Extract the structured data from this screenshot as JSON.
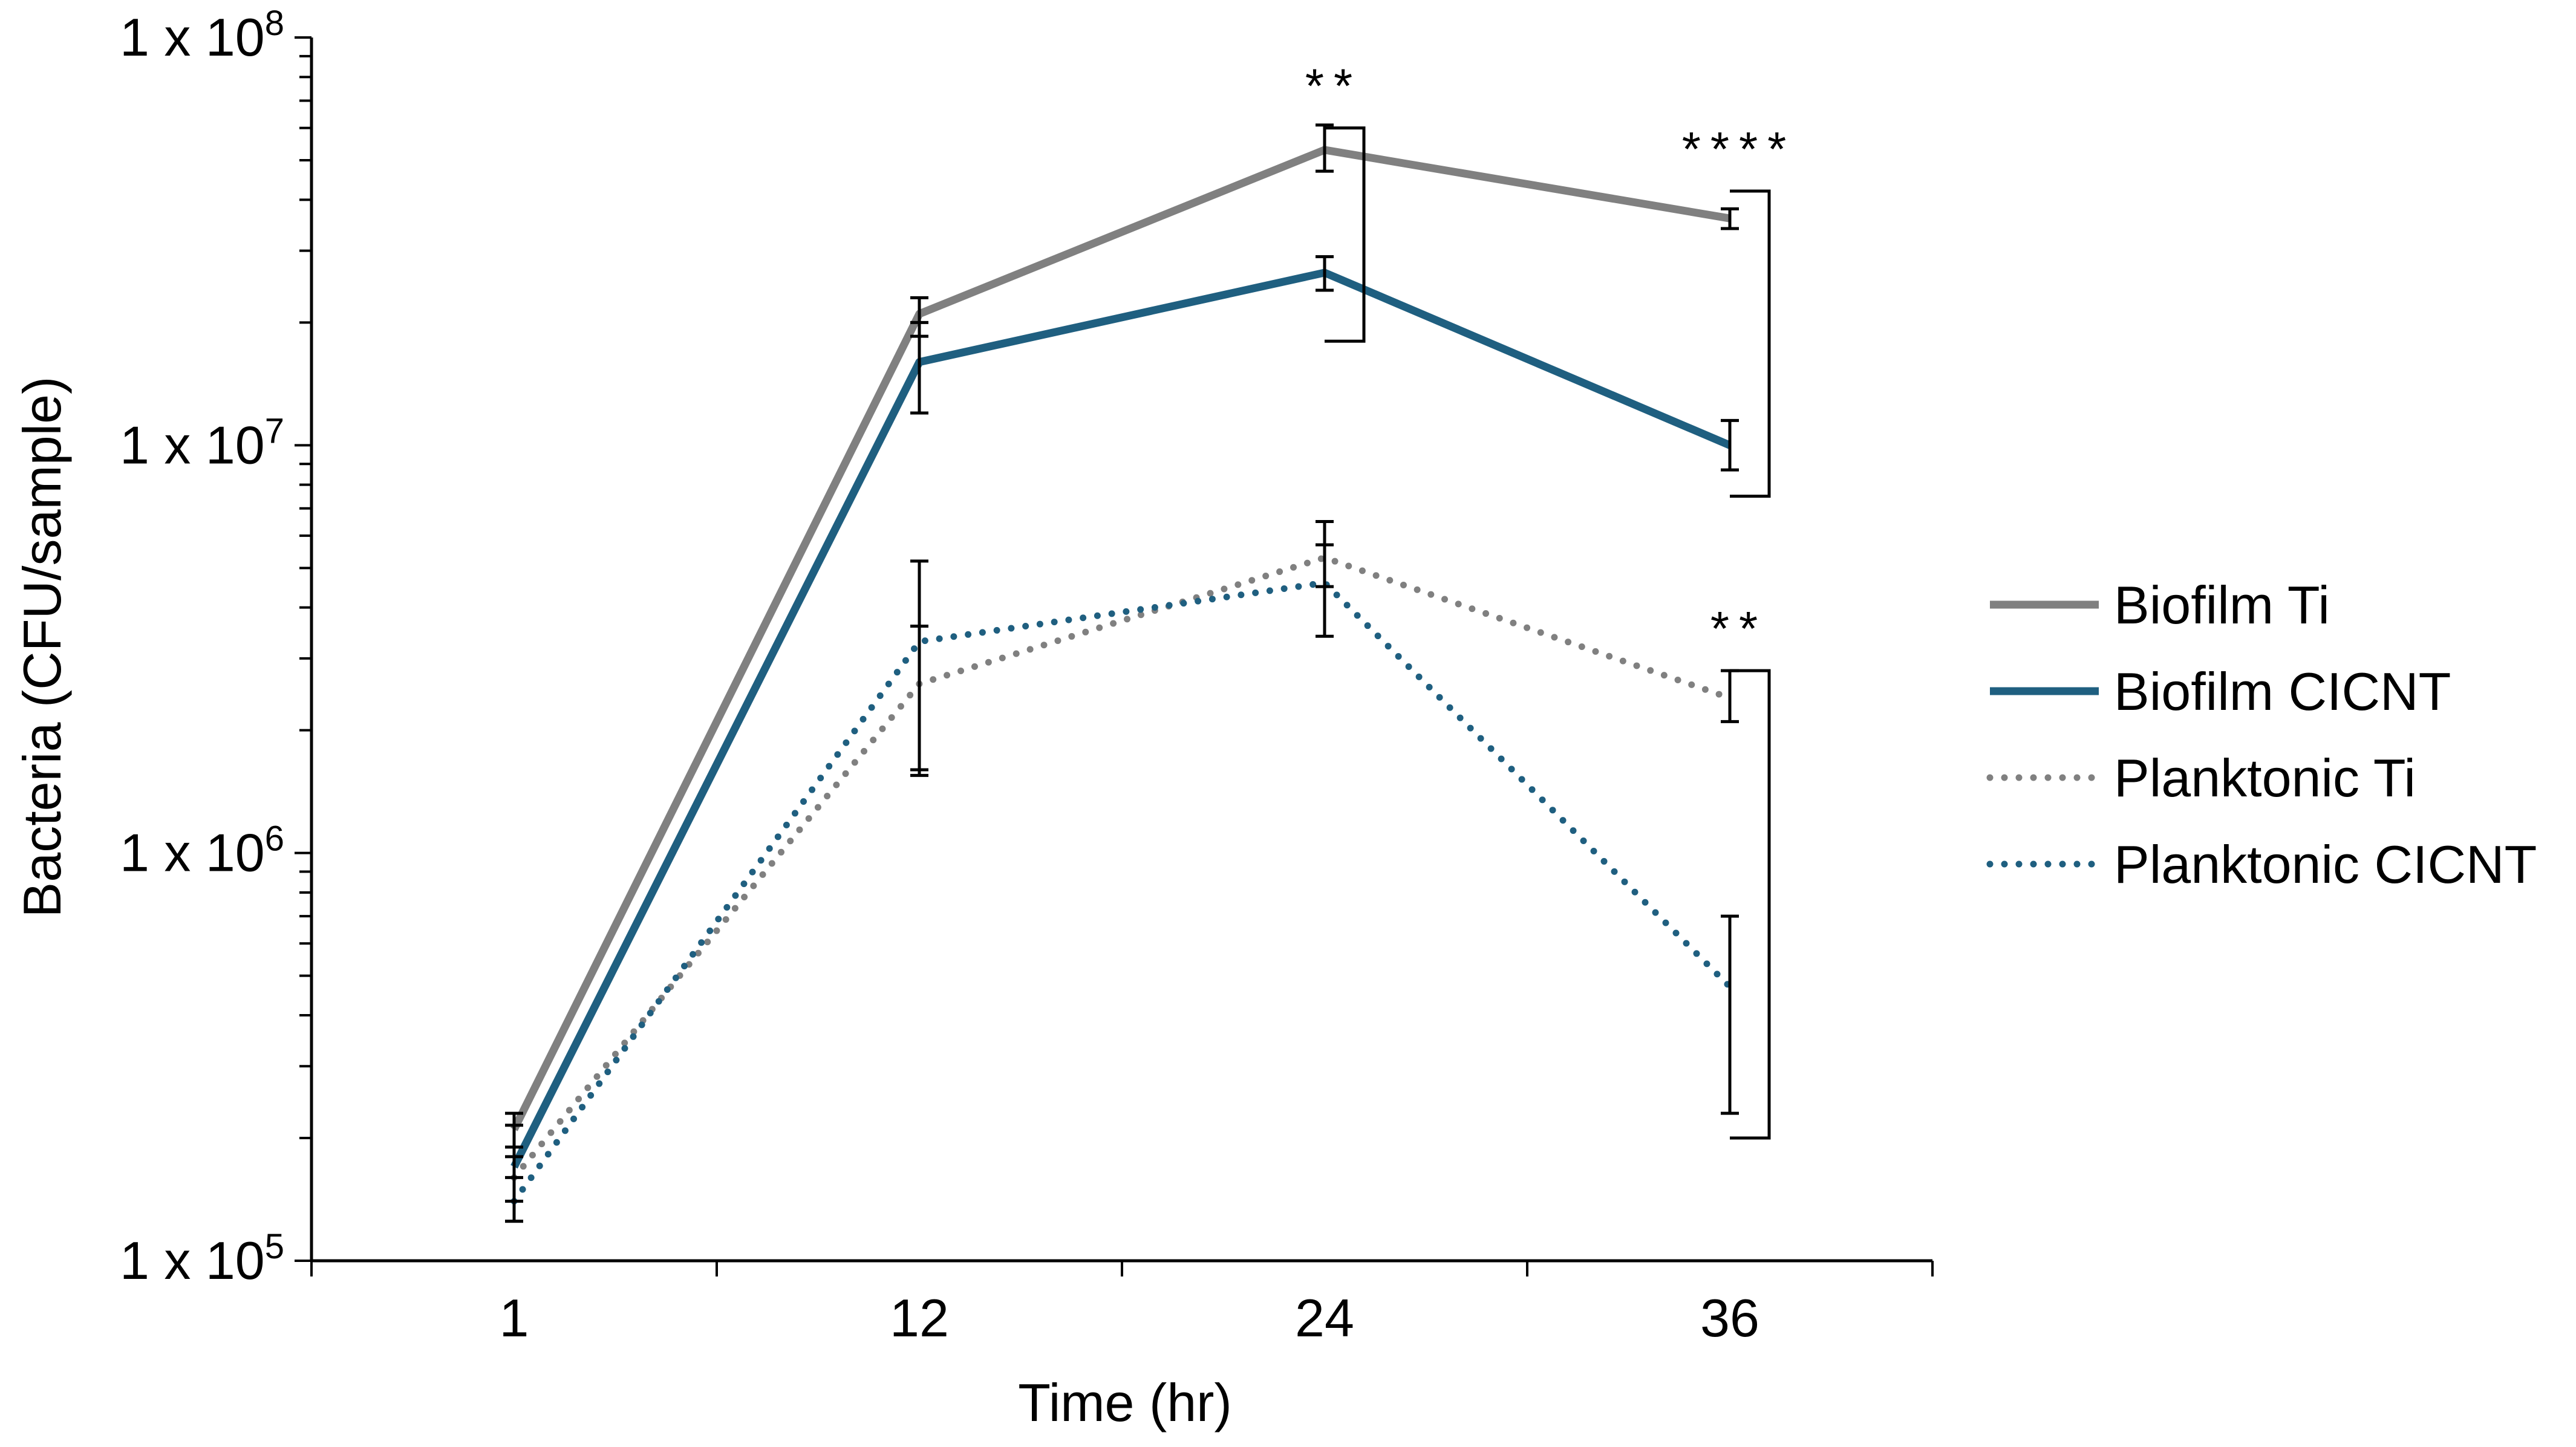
{
  "chart_data": {
    "type": "line",
    "title": "",
    "xlabel": "Time (hr)",
    "ylabel": "Bacteria (CFU/sample)",
    "yscale": "log",
    "ylim": [
      100000,
      100000000
    ],
    "categories": [
      "1",
      "12",
      "24",
      "36"
    ],
    "y_ticks": [
      {
        "value": 100000,
        "base": "1 x 10",
        "exp": "5"
      },
      {
        "value": 1000000,
        "base": "1 x 10",
        "exp": "6"
      },
      {
        "value": 10000000,
        "base": "1 x 10",
        "exp": "7"
      },
      {
        "value": 100000000,
        "base": "1 x 10",
        "exp": "8"
      }
    ],
    "series": [
      {
        "name": "Biofilm Ti",
        "color": "#808080",
        "style": "solid",
        "values": [
          210000,
          21000000,
          53000000,
          36000000
        ],
        "errors": [
          [
            190000,
            230000
          ],
          [
            18500000,
            23000000
          ],
          [
            47000000,
            61000000
          ],
          [
            34000000,
            38000000
          ]
        ]
      },
      {
        "name": "Biofilm CICNT",
        "color": "#1f5f80",
        "style": "solid",
        "values": [
          170000,
          16000000,
          26500000,
          10000000
        ],
        "errors": [
          [
            125000,
            215000
          ],
          [
            12000000,
            20000000
          ],
          [
            24000000,
            29000000
          ],
          [
            8700000,
            11500000
          ]
        ]
      },
      {
        "name": "Planktonic Ti",
        "color": "#808080",
        "style": "dotted",
        "values": [
          160000,
          2600000,
          5300000,
          2400000
        ],
        "errors": [
          [
            140000,
            180000
          ],
          [
            1600000,
            3600000
          ],
          [
            4500000,
            6500000
          ],
          [
            2100000,
            2800000
          ]
        ]
      },
      {
        "name": "Planktonic CICNT",
        "color": "#1f5f80",
        "style": "dotted",
        "values": [
          140000,
          3300000,
          4600000,
          470000
        ],
        "errors": [
          [
            125000,
            160000
          ],
          [
            1550000,
            5200000
          ],
          [
            3400000,
            5700000
          ],
          [
            230000,
            700000
          ]
        ]
      }
    ],
    "significance": [
      {
        "label": "**",
        "x_index": 2,
        "y_low": 18000000,
        "y_high": 60000000
      },
      {
        "label": "****",
        "x_index": 3,
        "y_low": 7500000,
        "y_high": 42000000
      },
      {
        "label": "**",
        "x_index": 3,
        "y_low": 200000,
        "y_high": 2800000
      }
    ],
    "legend_position": "right"
  }
}
